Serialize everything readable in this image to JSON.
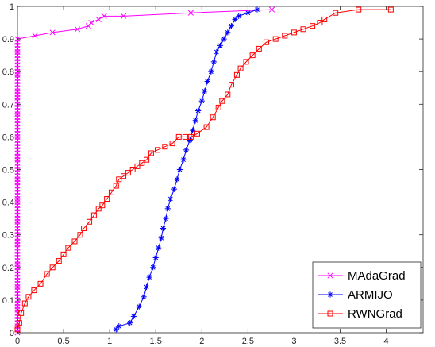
{
  "chart_data": {
    "type": "line",
    "title": "",
    "xlabel": "",
    "ylabel": "",
    "xlim": [
      0,
      4.4
    ],
    "ylim": [
      0,
      1
    ],
    "xticks": [
      0,
      0.5,
      1,
      1.5,
      2,
      2.5,
      3,
      3.5,
      4
    ],
    "xtick_labels": [
      "0",
      "0.5",
      "1",
      "1.5",
      "2",
      "2.5",
      "3",
      "3.5",
      "4"
    ],
    "yticks": [
      0,
      0.1,
      0.2,
      0.3,
      0.4,
      0.5,
      0.6,
      0.7,
      0.8,
      0.9,
      1
    ],
    "ytick_labels": [
      "0",
      "0.1",
      "0.2",
      "0.3",
      "0.4",
      "0.5",
      "0.6",
      "0.7",
      "0.8",
      "0.9",
      "1"
    ],
    "grid": false,
    "legend_position": "bottom-right",
    "series": [
      {
        "name": "MAdaGrad",
        "color": "#ff00ff",
        "marker": "x",
        "x": [
          0,
          0,
          0,
          0,
          0,
          0,
          0,
          0,
          0,
          0,
          0,
          0,
          0,
          0,
          0,
          0,
          0,
          0,
          0,
          0,
          0,
          0,
          0,
          0,
          0,
          0,
          0,
          0,
          0,
          0,
          0,
          0,
          0,
          0,
          0,
          0,
          0,
          0,
          0,
          0,
          0,
          0,
          0,
          0,
          0,
          0,
          0,
          0,
          0,
          0,
          0,
          0,
          0,
          0,
          0,
          0,
          0,
          0,
          0,
          0,
          0,
          0,
          0,
          0,
          0,
          0,
          0,
          0,
          0,
          0,
          0,
          0,
          0,
          0,
          0,
          0,
          0,
          0,
          0,
          0,
          0,
          0,
          0,
          0,
          0,
          0,
          0,
          0,
          0,
          0,
          0,
          0.19,
          0.38,
          0.65,
          0.77,
          0.8,
          0.88,
          0.94,
          1.15,
          1.88,
          2.76
        ],
        "y": [
          0,
          0.01,
          0.02,
          0.03,
          0.04,
          0.05,
          0.06,
          0.07,
          0.08,
          0.09,
          0.1,
          0.11,
          0.12,
          0.13,
          0.14,
          0.15,
          0.16,
          0.17,
          0.18,
          0.19,
          0.2,
          0.21,
          0.22,
          0.23,
          0.24,
          0.25,
          0.26,
          0.27,
          0.28,
          0.29,
          0.3,
          0.31,
          0.32,
          0.33,
          0.34,
          0.35,
          0.36,
          0.37,
          0.38,
          0.39,
          0.4,
          0.41,
          0.42,
          0.43,
          0.44,
          0.45,
          0.46,
          0.47,
          0.48,
          0.49,
          0.5,
          0.51,
          0.52,
          0.53,
          0.54,
          0.55,
          0.56,
          0.57,
          0.58,
          0.59,
          0.6,
          0.61,
          0.62,
          0.63,
          0.64,
          0.65,
          0.66,
          0.67,
          0.68,
          0.69,
          0.7,
          0.71,
          0.72,
          0.73,
          0.74,
          0.75,
          0.76,
          0.77,
          0.78,
          0.79,
          0.8,
          0.81,
          0.82,
          0.83,
          0.84,
          0.85,
          0.86,
          0.87,
          0.88,
          0.89,
          0.9,
          0.91,
          0.92,
          0.93,
          0.94,
          0.95,
          0.96,
          0.97,
          0.97,
          0.98,
          0.99
        ]
      },
      {
        "name": "ARMIJO",
        "color": "#0000ff",
        "marker": "*",
        "x": [
          1.07,
          1.1,
          1.22,
          1.26,
          1.32,
          1.37,
          1.4,
          1.43,
          1.47,
          1.5,
          1.53,
          1.56,
          1.58,
          1.61,
          1.63,
          1.66,
          1.7,
          1.73,
          1.76,
          1.8,
          1.83,
          1.87,
          1.9,
          1.93,
          1.96,
          2.0,
          2.03,
          2.06,
          2.1,
          2.13,
          2.16,
          2.2,
          2.24,
          2.28,
          2.32,
          2.36,
          2.4,
          2.5,
          2.6
        ],
        "y": [
          0.01,
          0.02,
          0.03,
          0.05,
          0.08,
          0.11,
          0.14,
          0.17,
          0.2,
          0.23,
          0.26,
          0.29,
          0.32,
          0.35,
          0.38,
          0.41,
          0.44,
          0.47,
          0.5,
          0.53,
          0.56,
          0.59,
          0.62,
          0.65,
          0.68,
          0.71,
          0.74,
          0.77,
          0.8,
          0.83,
          0.86,
          0.88,
          0.9,
          0.92,
          0.94,
          0.96,
          0.97,
          0.98,
          0.99
        ]
      },
      {
        "name": "RWNGrad",
        "color": "#ff0000",
        "marker": "square",
        "x": [
          0,
          0.02,
          0.04,
          0.08,
          0.12,
          0.18,
          0.25,
          0.32,
          0.38,
          0.45,
          0.5,
          0.55,
          0.62,
          0.68,
          0.72,
          0.78,
          0.83,
          0.88,
          0.92,
          0.97,
          1.02,
          1.07,
          1.1,
          1.15,
          1.2,
          1.25,
          1.3,
          1.35,
          1.4,
          1.45,
          1.52,
          1.6,
          1.68,
          1.75,
          1.82,
          1.88,
          1.95,
          2.05,
          2.12,
          2.18,
          2.22,
          2.28,
          2.32,
          2.38,
          2.42,
          2.48,
          2.55,
          2.62,
          2.7,
          2.8,
          2.9,
          3.0,
          3.1,
          3.2,
          3.28,
          3.33,
          3.45,
          3.7,
          4.05
        ],
        "y": [
          0.01,
          0.03,
          0.06,
          0.09,
          0.11,
          0.13,
          0.15,
          0.18,
          0.2,
          0.22,
          0.24,
          0.26,
          0.28,
          0.3,
          0.32,
          0.34,
          0.36,
          0.38,
          0.39,
          0.41,
          0.43,
          0.45,
          0.47,
          0.48,
          0.49,
          0.5,
          0.51,
          0.52,
          0.53,
          0.55,
          0.56,
          0.57,
          0.58,
          0.6,
          0.6,
          0.6,
          0.61,
          0.63,
          0.66,
          0.69,
          0.71,
          0.73,
          0.76,
          0.79,
          0.81,
          0.83,
          0.85,
          0.87,
          0.89,
          0.9,
          0.91,
          0.92,
          0.93,
          0.94,
          0.95,
          0.96,
          0.98,
          0.99,
          0.99
        ]
      }
    ]
  }
}
